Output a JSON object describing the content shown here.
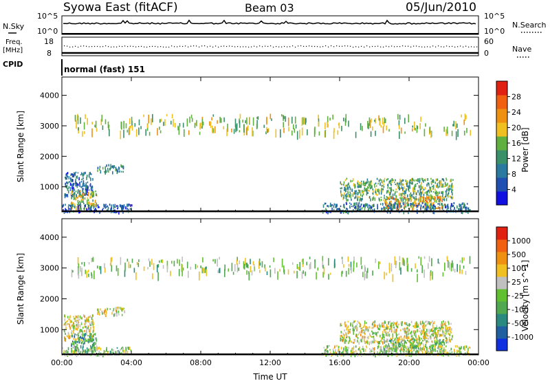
{
  "header": {
    "title": "Syowa East (fitACF)",
    "beam": "Beam 03",
    "date": "05/Jun/2010"
  },
  "status_panels": {
    "nsky_label": "N.Sky",
    "nsearch_label": "N.Search",
    "freq_label_1": "Freq.",
    "freq_label_2": "[MHz]",
    "nave_label": "Nave",
    "cpid_label": "CPID",
    "cpid_value": "normal (fast) 151",
    "noise_ticks": [
      "10^5",
      "10^0"
    ],
    "freq_ticks": [
      "18",
      "8"
    ],
    "nave_ticks": [
      "60",
      "0"
    ]
  },
  "colors": {
    "power": [
      "#1010e0",
      "#1f4fb0",
      "#2a7aa0",
      "#3a9068",
      "#60b040",
      "#f0c020",
      "#f09010",
      "#f06010",
      "#e02010"
    ],
    "velocity": [
      "#1030e0",
      "#2060a0",
      "#2a8a80",
      "#50a850",
      "#60c030",
      "#c0c0c0",
      "#f0c020",
      "#f09010",
      "#f06010",
      "#e02010"
    ]
  },
  "chart_data": [
    {
      "type": "heatmap",
      "name": "power",
      "ylabel": "Slant Range [km]",
      "x_ticks": [
        "00:00",
        "04:00",
        "08:00",
        "12:00",
        "16:00",
        "20:00",
        "00:00"
      ],
      "y_ticks": [
        1000,
        2000,
        3000,
        4000
      ],
      "ylim": [
        180,
        4600
      ],
      "xlim_hours": [
        0,
        24
      ],
      "colorbar_label": "Power [dB]",
      "colorbar_ticks": [
        "28",
        "24",
        "20",
        "16",
        "12",
        "8",
        "4"
      ],
      "colorbar_range": [
        0,
        32
      ],
      "regions": [
        {
          "t0": 0.1,
          "t1": 1.8,
          "r0": 700,
          "r1": 1500,
          "value": 8
        },
        {
          "t0": 0.5,
          "t1": 2.0,
          "r0": 300,
          "r1": 900,
          "value": 18
        },
        {
          "t0": 2.0,
          "t1": 3.6,
          "r0": 1500,
          "r1": 1750,
          "value": 10
        },
        {
          "t0": 0.0,
          "t1": 4.0,
          "r0": 200,
          "r1": 450,
          "value": 6
        },
        {
          "t0": 16.0,
          "t1": 22.5,
          "r0": 600,
          "r1": 1300,
          "value": 14
        },
        {
          "t0": 18.5,
          "t1": 22.0,
          "r0": 300,
          "r1": 700,
          "value": 22
        },
        {
          "t0": 15.0,
          "t1": 23.5,
          "r0": 200,
          "r1": 500,
          "value": 9
        },
        {
          "t0": 0.5,
          "t1": 23.5,
          "r0": 2800,
          "r1": 3400,
          "value": 17
        }
      ]
    },
    {
      "type": "heatmap",
      "name": "velocity",
      "xlabel": "Time UT",
      "ylabel": "Slant Range [km]",
      "x_ticks": [
        "00:00",
        "04:00",
        "08:00",
        "12:00",
        "16:00",
        "20:00",
        "00:00"
      ],
      "y_ticks": [
        1000,
        2000,
        3000,
        4000
      ],
      "ylim": [
        180,
        4600
      ],
      "xlim_hours": [
        0,
        24
      ],
      "colorbar_label": "Velocity [m s^-1]",
      "colorbar_ticks": [
        "1000",
        "500",
        "100",
        "25",
        "-25",
        "-100",
        "-500",
        "-1000"
      ],
      "colorbar_range": [
        -1200,
        1200
      ],
      "regions": [
        {
          "t0": 0.1,
          "t1": 1.8,
          "r0": 700,
          "r1": 1500,
          "value": 200
        },
        {
          "t0": 0.5,
          "t1": 2.0,
          "r0": 300,
          "r1": 900,
          "value": -400
        },
        {
          "t0": 2.0,
          "t1": 3.6,
          "r0": 1500,
          "r1": 1750,
          "value": 120
        },
        {
          "t0": 0.0,
          "t1": 4.0,
          "r0": 200,
          "r1": 450,
          "value": -80
        },
        {
          "t0": 16.0,
          "t1": 22.5,
          "r0": 600,
          "r1": 1300,
          "value": 150
        },
        {
          "t0": 18.5,
          "t1": 22.0,
          "r0": 300,
          "r1": 700,
          "value": -150
        },
        {
          "t0": 15.0,
          "t1": 23.5,
          "r0": 200,
          "r1": 500,
          "value": 0
        },
        {
          "t0": 0.5,
          "t1": 23.5,
          "r0": 2800,
          "r1": 3400,
          "value": -60
        }
      ]
    }
  ]
}
